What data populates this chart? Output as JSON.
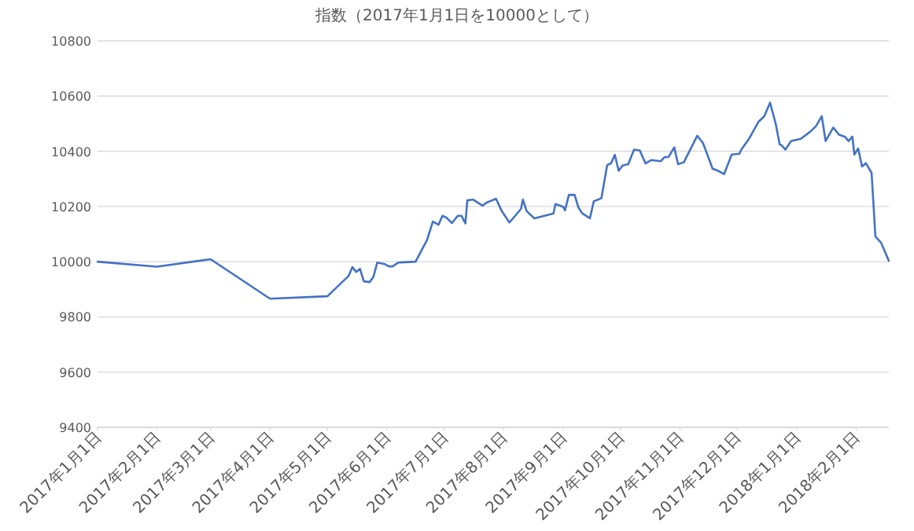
{
  "chart_data": {
    "type": "line",
    "title": "指数（2017年1月1日を10000として）",
    "grid": "y",
    "x": [
      "2017-01-01",
      "2017-02-01",
      "2017-03-01",
      "2017-04-01",
      "2017-05-01",
      "2017-05-12",
      "2017-05-14",
      "2017-05-16",
      "2017-05-18",
      "2017-05-20",
      "2017-05-23",
      "2017-05-25",
      "2017-05-27",
      "2017-05-31",
      "2017-06-02",
      "2017-06-04",
      "2017-06-07",
      "2017-06-16",
      "2017-06-22",
      "2017-06-25",
      "2017-06-28",
      "2017-06-30",
      "2017-07-02",
      "2017-07-05",
      "2017-07-08",
      "2017-07-10",
      "2017-07-12",
      "2017-07-13",
      "2017-07-16",
      "2017-07-21",
      "2017-07-23",
      "2017-07-28",
      "2017-07-31",
      "2017-08-04",
      "2017-08-10",
      "2017-08-11",
      "2017-08-13",
      "2017-08-17",
      "2017-08-27",
      "2017-08-28",
      "2017-09-01",
      "2017-09-02",
      "2017-09-04",
      "2017-09-07",
      "2017-09-09",
      "2017-09-11",
      "2017-09-15",
      "2017-09-17",
      "2017-09-21",
      "2017-09-24",
      "2017-09-26",
      "2017-09-28",
      "2017-09-30",
      "2017-10-02",
      "2017-10-05",
      "2017-10-08",
      "2017-10-11",
      "2017-10-14",
      "2017-10-17",
      "2017-10-22",
      "2017-10-24",
      "2017-10-26",
      "2017-10-29",
      "2017-10-31",
      "2017-11-03",
      "2017-11-10",
      "2017-11-13",
      "2017-11-18",
      "2017-11-21",
      "2017-11-24",
      "2017-11-28",
      "2017-12-02",
      "2017-12-03",
      "2017-12-07",
      "2017-12-12",
      "2017-12-15",
      "2017-12-18",
      "2017-12-21",
      "2017-12-23",
      "2017-12-24",
      "2017-12-26",
      "2017-12-29",
      "2018-01-03",
      "2018-01-08",
      "2018-01-11",
      "2018-01-14",
      "2018-01-16",
      "2018-01-20",
      "2018-01-23",
      "2018-01-26",
      "2018-01-28",
      "2018-01-30",
      "2018-01-31",
      "2018-02-02",
      "2018-02-04",
      "2018-02-06",
      "2018-02-09",
      "2018-02-11",
      "2018-02-14",
      "2018-02-18"
    ],
    "series": [
      {
        "color": "#4472c4",
        "values": [
          10000,
          9982,
          10009,
          9866,
          9875,
          9948,
          9980,
          9963,
          9974,
          9929,
          9926,
          9945,
          9997,
          9991,
          9983,
          9983,
          9997,
          10000,
          10079,
          10145,
          10134,
          10166,
          10160,
          10140,
          10166,
          10166,
          10139,
          10222,
          10225,
          10203,
          10214,
          10228,
          10183,
          10142,
          10191,
          10225,
          10183,
          10157,
          10175,
          10209,
          10199,
          10186,
          10242,
          10242,
          10196,
          10175,
          10157,
          10219,
          10230,
          10350,
          10356,
          10387,
          10329,
          10348,
          10353,
          10406,
          10403,
          10356,
          10368,
          10364,
          10379,
          10379,
          10414,
          10353,
          10360,
          10456,
          10430,
          10337,
          10329,
          10317,
          10388,
          10391,
          10406,
          10445,
          10507,
          10527,
          10576,
          10499,
          10425,
          10422,
          10406,
          10437,
          10445,
          10471,
          10491,
          10527,
          10437,
          10486,
          10460,
          10453,
          10437,
          10453,
          10388,
          10410,
          10345,
          10357,
          10322,
          10091,
          10068,
          10003
        ]
      }
    ],
    "xlim": [
      "2017-01-01",
      "2018-02-18"
    ],
    "ylim": [
      9400,
      10800
    ],
    "yticks": [
      9400,
      9600,
      9800,
      10000,
      10200,
      10400,
      10600,
      10800
    ],
    "xticks": [
      {
        "value": "2017-01-01",
        "label": "2017年1月1日"
      },
      {
        "value": "2017-02-01",
        "label": "2017年2月1日"
      },
      {
        "value": "2017-03-01",
        "label": "2017年3月1日"
      },
      {
        "value": "2017-04-01",
        "label": "2017年4月1日"
      },
      {
        "value": "2017-05-01",
        "label": "2017年5月1日"
      },
      {
        "value": "2017-06-01",
        "label": "2017年6月1日"
      },
      {
        "value": "2017-07-01",
        "label": "2017年7月1日"
      },
      {
        "value": "2017-08-01",
        "label": "2017年8月1日"
      },
      {
        "value": "2017-09-01",
        "label": "2017年9月1日"
      },
      {
        "value": "2017-10-01",
        "label": "2017年10月1日"
      },
      {
        "value": "2017-11-01",
        "label": "2017年11月1日"
      },
      {
        "value": "2017-12-01",
        "label": "2017年12月1日"
      },
      {
        "value": "2018-01-01",
        "label": "2018年1月1日"
      },
      {
        "value": "2018-02-01",
        "label": "2018年2月1日"
      }
    ]
  }
}
